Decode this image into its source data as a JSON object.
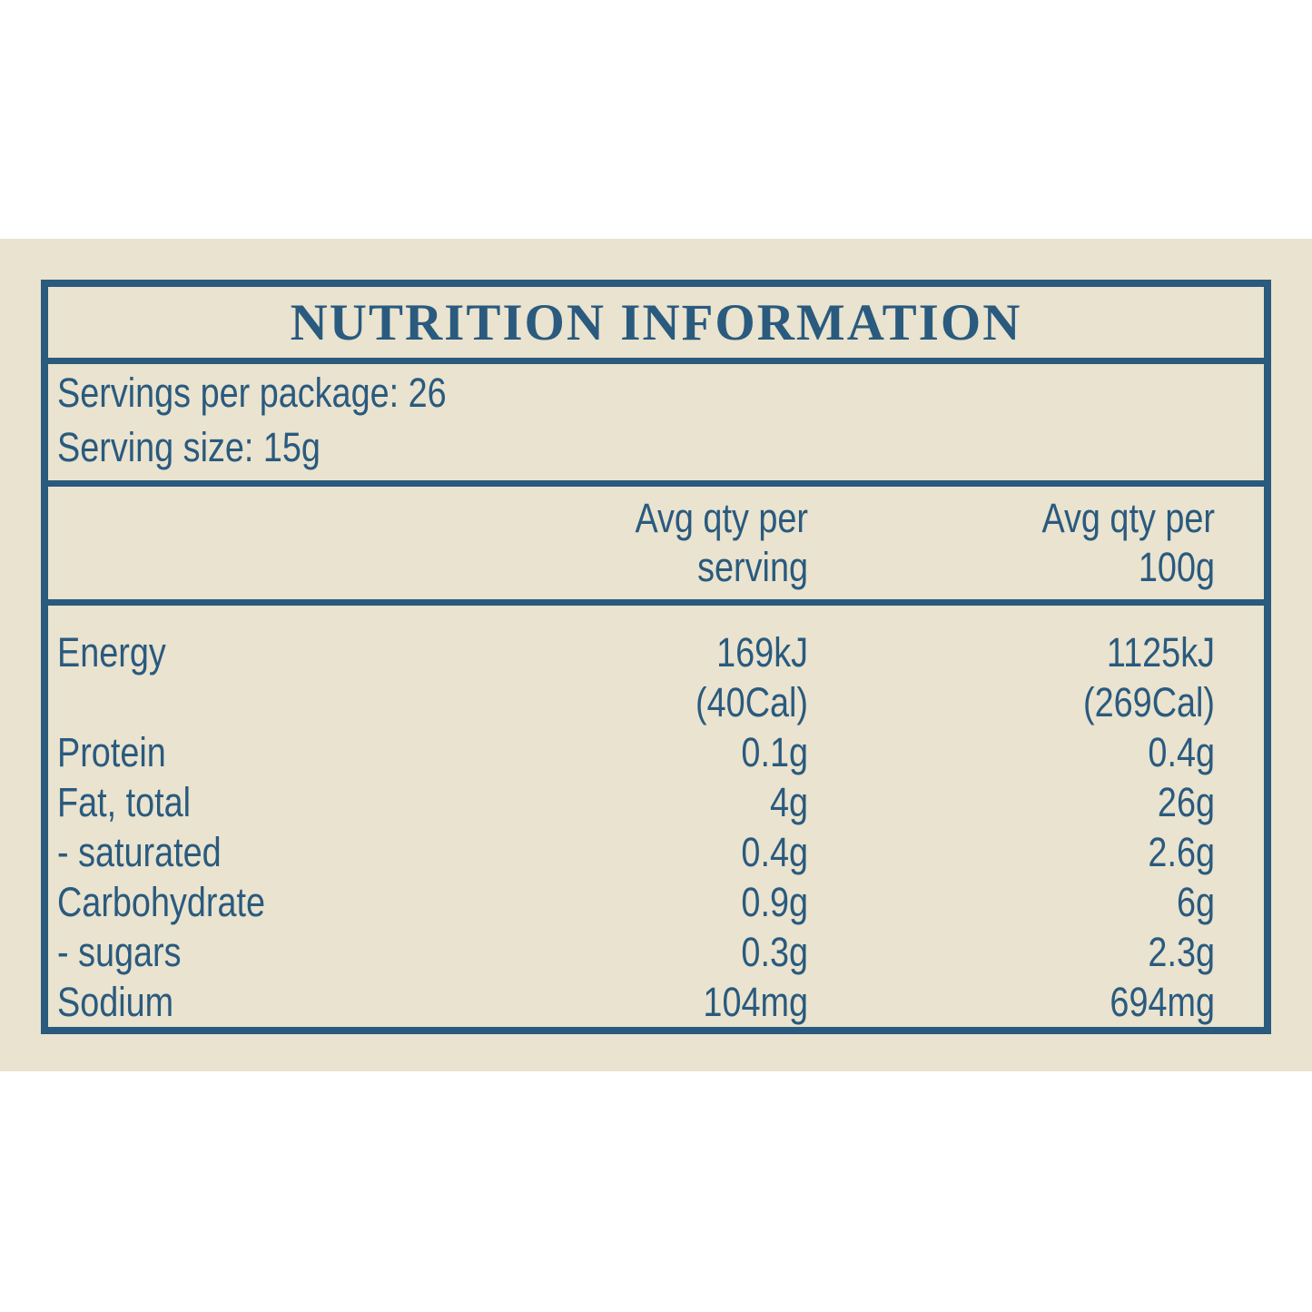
{
  "colors": {
    "page_bg": "#ffffff",
    "panel_bg": "#e9e3cf",
    "ink": "#2a5a7e"
  },
  "label": {
    "title": "NUTRITION INFORMATION",
    "serving_info": {
      "servings_per_package": "Servings per package: 26",
      "serving_size": "Serving size: 15g"
    },
    "columns": {
      "per_serving": "Avg qty per\nserving",
      "per_100g": "Avg qty per\n100g"
    },
    "rows": [
      {
        "label": "Energy",
        "per_serving": "169kJ\n(40Cal)",
        "per_100g": "1125kJ\n(269Cal)"
      },
      {
        "label": "Protein",
        "per_serving": "0.1g",
        "per_100g": "0.4g"
      },
      {
        "label": "Fat, total",
        "per_serving": "4g",
        "per_100g": "26g"
      },
      {
        "label": "- saturated",
        "per_serving": "0.4g",
        "per_100g": "2.6g"
      },
      {
        "label": "Carbohydrate",
        "per_serving": "0.9g",
        "per_100g": "6g"
      },
      {
        "label": "- sugars",
        "per_serving": "0.3g",
        "per_100g": "2.3g"
      },
      {
        "label": "Sodium",
        "per_serving": "104mg",
        "per_100g": "694mg"
      }
    ]
  }
}
